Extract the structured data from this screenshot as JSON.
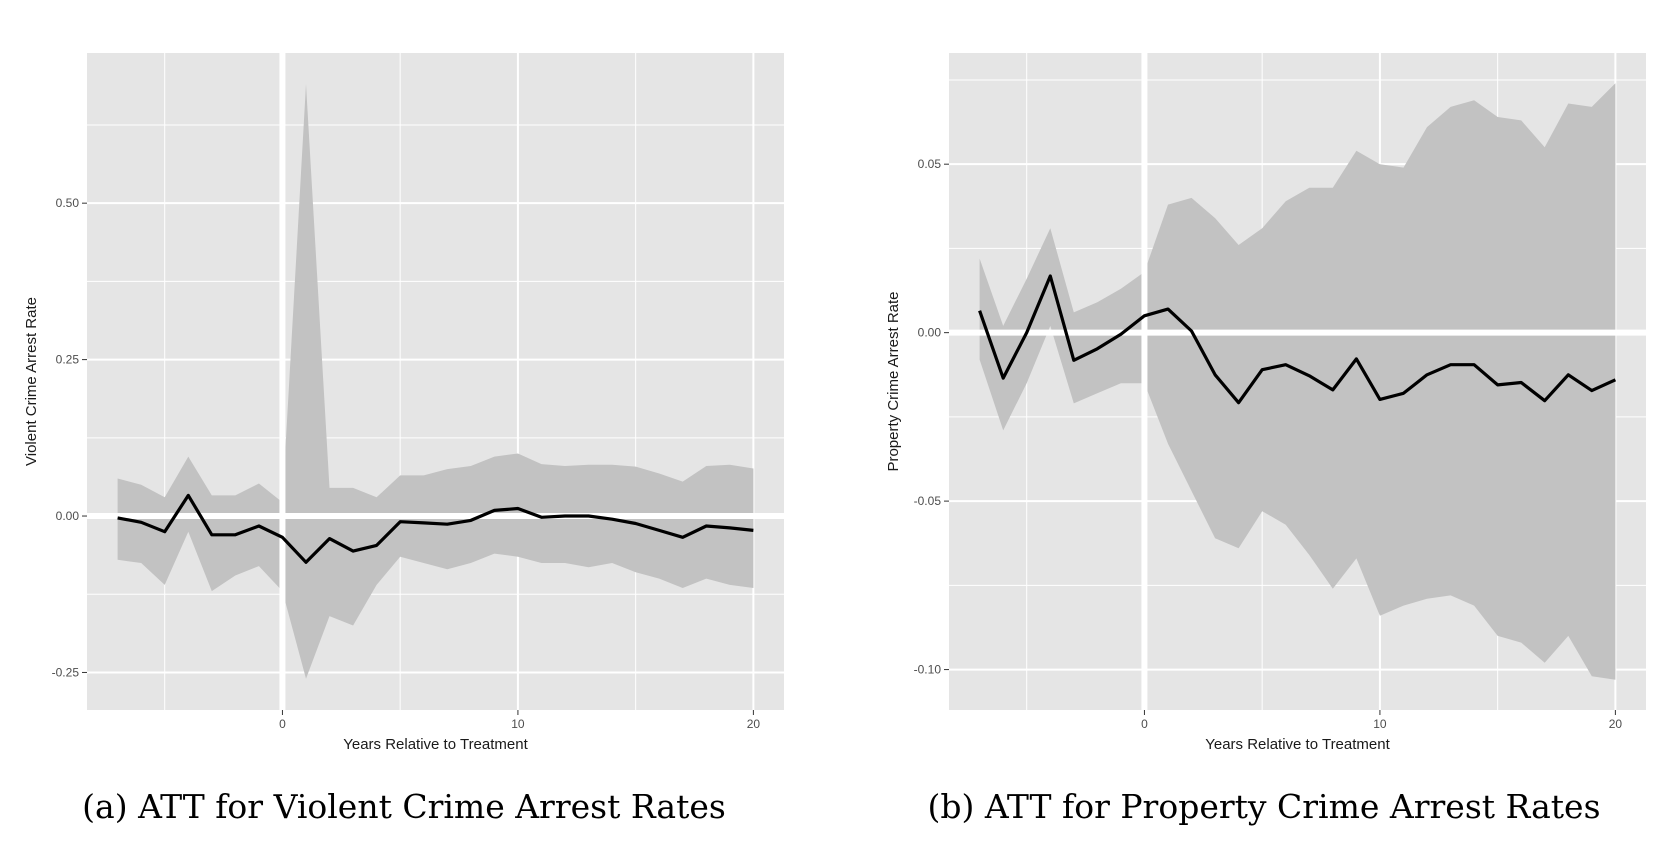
{
  "colors": {
    "panel_background": "#e5e5e5",
    "grid": "#ffffff",
    "ribbon": "#c2c2c2",
    "line": "#000000"
  },
  "chart_data": [
    {
      "type": "line",
      "caption": "(a) ATT for Violent Crime Arrest Rates",
      "xlabel": "Years Relative to Treatment",
      "ylabel": "Violent Crime Arrest Rate",
      "xlim": [
        -8.3,
        21.3
      ],
      "ylim": [
        -0.31,
        0.74
      ],
      "x_ticks": [
        0,
        10,
        20
      ],
      "y_ticks": [
        -0.25,
        0.0,
        0.25,
        0.5
      ],
      "x_tick_labels": [
        "0",
        "10",
        "20"
      ],
      "y_tick_labels": [
        "-0.25",
        "0.00",
        "0.25",
        "0.50"
      ],
      "reference_lines": {
        "x": 0,
        "y": 0
      },
      "grid": true,
      "legend": "none",
      "x": [
        -7,
        -6,
        -5,
        -4,
        -3,
        -2,
        -1,
        0,
        1,
        2,
        3,
        4,
        5,
        6,
        7,
        8,
        9,
        10,
        11,
        12,
        13,
        14,
        15,
        16,
        17,
        18,
        19,
        20
      ],
      "estimate": [
        -0.003,
        -0.01,
        -0.025,
        0.033,
        -0.03,
        -0.03,
        -0.016,
        -0.034,
        -0.074,
        -0.036,
        -0.056,
        -0.047,
        -0.009,
        -0.011,
        -0.013,
        -0.007,
        0.009,
        0.012,
        -0.002,
        0.0,
        0.0,
        -0.005,
        -0.012,
        -0.023,
        -0.034,
        -0.016,
        -0.019,
        -0.023
      ],
      "ci_upper": [
        0.06,
        0.05,
        0.03,
        0.095,
        0.033,
        0.033,
        0.052,
        0.022,
        0.69,
        0.045,
        0.045,
        0.03,
        0.065,
        0.065,
        0.075,
        0.08,
        0.095,
        0.1,
        0.083,
        0.08,
        0.082,
        0.082,
        0.079,
        0.068,
        0.055,
        0.08,
        0.082,
        0.076
      ],
      "ci_lower": [
        -0.07,
        -0.075,
        -0.11,
        -0.025,
        -0.12,
        -0.095,
        -0.08,
        -0.12,
        -0.26,
        -0.16,
        -0.175,
        -0.11,
        -0.065,
        -0.075,
        -0.085,
        -0.075,
        -0.06,
        -0.065,
        -0.075,
        -0.075,
        -0.082,
        -0.075,
        -0.09,
        -0.1,
        -0.115,
        -0.1,
        -0.11,
        -0.115
      ]
    },
    {
      "type": "line",
      "caption": "(b) ATT for Property Crime Arrest Rates",
      "xlabel": "Years Relative to Treatment",
      "ylabel": "Property Crime Arrest Rate",
      "xlim": [
        -8.3,
        21.3
      ],
      "ylim": [
        -0.112,
        0.083
      ],
      "x_ticks": [
        0,
        10,
        20
      ],
      "y_ticks": [
        -0.1,
        -0.05,
        0.0,
        0.05
      ],
      "x_tick_labels": [
        "0",
        "10",
        "20"
      ],
      "y_tick_labels": [
        "-0.10",
        "-0.05",
        "0.00",
        "0.05"
      ],
      "reference_lines": {
        "x": 0,
        "y": 0
      },
      "grid": true,
      "legend": "none",
      "x": [
        -7,
        -6,
        -5,
        -4,
        -3,
        -2,
        -1,
        0,
        1,
        2,
        3,
        4,
        5,
        6,
        7,
        8,
        9,
        10,
        11,
        12,
        13,
        14,
        15,
        16,
        17,
        18,
        19,
        20
      ],
      "estimate": [
        0.0065,
        -0.0135,
        0.0,
        0.0168,
        -0.0082,
        -0.0048,
        -0.0005,
        0.005,
        0.007,
        0.0005,
        -0.0125,
        -0.0208,
        -0.011,
        -0.0095,
        -0.0128,
        -0.017,
        -0.0078,
        -0.0198,
        -0.018,
        -0.0125,
        -0.0095,
        -0.0095,
        -0.0155,
        -0.0148,
        -0.0202,
        -0.0125,
        -0.0172,
        -0.014
      ],
      "ci_upper": [
        0.022,
        0.002,
        0.016,
        0.031,
        0.006,
        0.009,
        0.013,
        0.018,
        0.038,
        0.04,
        0.034,
        0.026,
        0.031,
        0.039,
        0.043,
        0.043,
        0.054,
        0.05,
        0.049,
        0.061,
        0.067,
        0.069,
        0.064,
        0.063,
        0.055,
        0.068,
        0.067,
        0.074
      ],
      "ci_lower": [
        -0.008,
        -0.029,
        -0.015,
        0.002,
        -0.021,
        -0.018,
        -0.015,
        -0.015,
        -0.033,
        -0.047,
        -0.061,
        -0.064,
        -0.053,
        -0.057,
        -0.066,
        -0.076,
        -0.067,
        -0.084,
        -0.081,
        -0.079,
        -0.078,
        -0.081,
        -0.09,
        -0.092,
        -0.098,
        -0.09,
        -0.102,
        -0.103
      ]
    }
  ]
}
